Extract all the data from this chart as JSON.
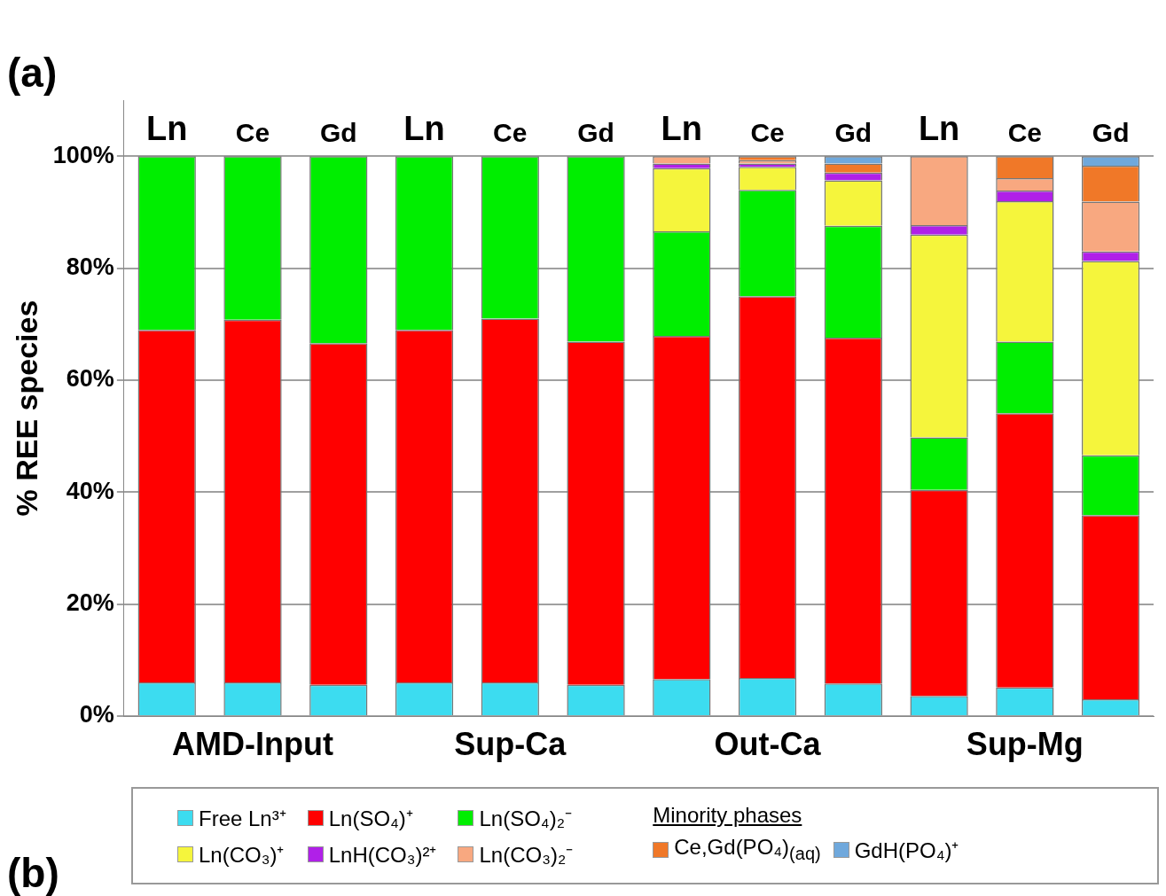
{
  "chart_data": {
    "type": "bar",
    "stacked": true,
    "title": "(a)",
    "ylabel": "% REE species",
    "legend_title": "Minority phases",
    "legend": "bottom",
    "grid": "y",
    "categories": [
      "Ln",
      "Ce",
      "Gd",
      "Ln",
      "Ce",
      "Gd",
      "Ln",
      "Ce",
      "Gd",
      "Ln",
      "Ce",
      "Gd"
    ],
    "ylim": [
      0,
      110
    ],
    "yticks": [
      {
        "value": 0,
        "label": "0%"
      },
      {
        "value": 20,
        "label": "20%"
      },
      {
        "value": 40,
        "label": "40%"
      },
      {
        "value": 60,
        "label": "60%"
      },
      {
        "value": 80,
        "label": "80%"
      },
      {
        "value": 100,
        "label": "100%"
      }
    ],
    "annotations": [
      "AMD-Input",
      "Sup-Ca",
      "Out-Ca",
      "Sup-Mg",
      "(b)"
    ],
    "series": [
      {
        "name": "Free Ln³⁺",
        "color": "#3cdcf0",
        "values": [
          6.0,
          6.0,
          5.6,
          6.0,
          6.0,
          5.6,
          6.6,
          6.8,
          5.8,
          3.6,
          5.1,
          3.0
        ]
      },
      {
        "name": "Ln(SO₄)⁺",
        "color": "#ff0000",
        "values": [
          63.0,
          64.8,
          61.0,
          63.0,
          65.0,
          61.3,
          61.3,
          68.2,
          61.8,
          36.8,
          49.0,
          32.9
        ]
      },
      {
        "name": "Ln(SO₄)₂⁻",
        "color": "#00ee00",
        "values": [
          31.0,
          29.2,
          33.4,
          31.0,
          29.0,
          33.1,
          18.7,
          19.0,
          20.0,
          9.4,
          12.8,
          10.7
        ]
      },
      {
        "name": "Ln(CO₃)⁺",
        "color": "#f5f53c",
        "values": [
          null,
          null,
          null,
          null,
          null,
          null,
          11.3,
          4.1,
          8.1,
          36.2,
          25.1,
          34.7
        ]
      },
      {
        "name": "LnH(CO₃)²⁺",
        "color": "#b020e8",
        "values": [
          null,
          null,
          null,
          null,
          null,
          null,
          0.8,
          0.6,
          1.4,
          1.7,
          1.9,
          1.7
        ]
      },
      {
        "name": "Ln(CO₃)₂⁻",
        "color": "#f8a880",
        "values": [
          null,
          null,
          null,
          null,
          null,
          null,
          1.3,
          0.6,
          null,
          12.3,
          2.2,
          8.9
        ]
      },
      {
        "name": "Ce,Gd(PO₄)$_{(aq)}$",
        "color": "#f07828",
        "values": [
          null,
          null,
          null,
          null,
          null,
          null,
          null,
          0.7,
          1.6,
          null,
          3.9,
          6.4
        ]
      },
      {
        "name": "GdH(PO₄)⁺",
        "color": "#6fa8dc",
        "values": [
          null,
          null,
          null,
          null,
          null,
          null,
          null,
          null,
          1.3,
          null,
          null,
          1.7
        ]
      }
    ]
  }
}
